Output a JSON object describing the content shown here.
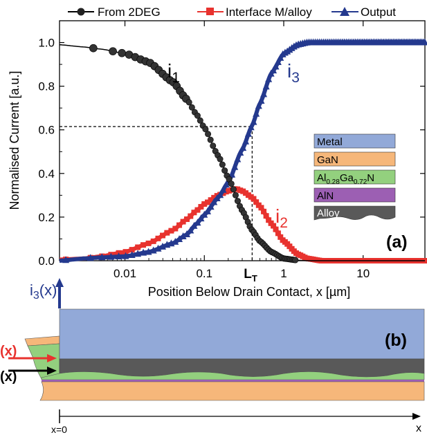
{
  "chart_data": {
    "type": "line",
    "xscale": "log",
    "xlim": [
      0.0015,
      60
    ],
    "ylim": [
      0,
      1.1
    ],
    "xlabel": "Position Below Drain Contact, x [µm]",
    "ylabel": "Normalised Current [a.u.]",
    "x_ticks": [
      0.01,
      0.1,
      1,
      10
    ],
    "x_tick_labels": [
      "0.01",
      "0.1",
      "1",
      "10"
    ],
    "y_ticks": [
      0.0,
      0.2,
      0.4,
      0.6,
      0.8,
      1.0
    ],
    "y_tick_labels": [
      "0.0",
      "0.2",
      "0.4",
      "0.6",
      "0.8",
      "1.0"
    ],
    "LT": {
      "label": "L",
      "sub": "T",
      "x": 0.4,
      "y": 0.615
    },
    "panel_label": "(a)",
    "legend": [
      {
        "name": "From 2DEG",
        "color": "#000000",
        "marker": "circle"
      },
      {
        "name": "Interface M/alloy",
        "color": "#e8322e",
        "marker": "square"
      },
      {
        "name": "Output",
        "color": "#24398e",
        "marker": "triangle"
      }
    ],
    "series": [
      {
        "name": "From 2DEG",
        "label": "i",
        "sub": "1",
        "color": "#000000",
        "x": [
          0.0015,
          0.003,
          0.005,
          0.01,
          0.02,
          0.04,
          0.06,
          0.08,
          0.1,
          0.15,
          0.2,
          0.3,
          0.4,
          0.5,
          0.7,
          1.0,
          1.5,
          2,
          5
        ],
        "y": [
          0.99,
          0.98,
          0.97,
          0.95,
          0.91,
          0.82,
          0.74,
          0.67,
          0.61,
          0.48,
          0.38,
          0.23,
          0.14,
          0.09,
          0.04,
          0.01,
          0.002,
          0.0,
          0.0
        ]
      },
      {
        "name": "Interface M/alloy",
        "label": "i",
        "sub": "2",
        "color": "#e8322e",
        "x": [
          0.0015,
          0.003,
          0.005,
          0.01,
          0.02,
          0.04,
          0.06,
          0.08,
          0.1,
          0.15,
          0.2,
          0.25,
          0.3,
          0.4,
          0.5,
          0.7,
          1.0,
          1.5,
          2,
          3,
          5,
          60
        ],
        "y": [
          0.005,
          0.01,
          0.02,
          0.04,
          0.08,
          0.14,
          0.19,
          0.23,
          0.26,
          0.3,
          0.32,
          0.33,
          0.32,
          0.29,
          0.25,
          0.17,
          0.09,
          0.03,
          0.01,
          0.0,
          0.0,
          0.0
        ]
      },
      {
        "name": "Output",
        "label": "i",
        "sub": "3",
        "color": "#24398e",
        "x": [
          0.0015,
          0.003,
          0.005,
          0.01,
          0.02,
          0.04,
          0.06,
          0.08,
          0.1,
          0.15,
          0.2,
          0.3,
          0.4,
          0.5,
          0.7,
          1.0,
          1.5,
          2,
          3,
          5,
          60
        ],
        "y": [
          0.0,
          0.01,
          0.015,
          0.02,
          0.04,
          0.08,
          0.12,
          0.17,
          0.21,
          0.29,
          0.36,
          0.51,
          0.62,
          0.72,
          0.86,
          0.95,
          0.99,
          1.0,
          1.0,
          1.0,
          1.0
        ]
      }
    ],
    "layer_legend": [
      {
        "name": "Metal",
        "color": "#92a9d8"
      },
      {
        "name": "GaN",
        "color": "#f6b77a"
      },
      {
        "name": "Al0.28Ga0.72N",
        "base": "Al",
        "sub1": "0.28",
        "mid": "Ga",
        "sub2": "0.72",
        "tail": "N",
        "color": "#93d07e"
      },
      {
        "name": "AlN",
        "color": "#9c5fb3"
      },
      {
        "name": "Alloy",
        "color": "#595959"
      }
    ]
  },
  "diagram": {
    "panel_label": "(b)",
    "i3x_label": "i",
    "i3x_sub": "3",
    "i3x_tail": "(x)",
    "i2x_label": "(x)",
    "i1x_label": "(x)",
    "x0_label": "x=0",
    "x_axis_label": "x"
  }
}
